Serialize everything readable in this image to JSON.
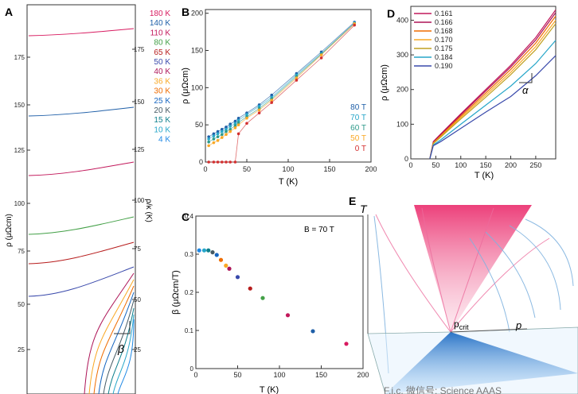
{
  "panels": {
    "A": {
      "label": "A",
      "ylabel": "ρ (μΩcm)",
      "ylabel_right": "ρ/κ (K)",
      "left_ticks": [
        "25",
        "50",
        "75",
        "100",
        "125",
        "150",
        "175"
      ],
      "right_ticks": [
        "25",
        "50",
        "75",
        "100",
        "125",
        "150",
        "175"
      ],
      "beta_label": "β",
      "legend": [
        {
          "text": "180 K",
          "color": "#d81b60"
        },
        {
          "text": "140 K",
          "color": "#1f5fa8"
        },
        {
          "text": "110 K",
          "color": "#c2185b"
        },
        {
          "text": "80 K",
          "color": "#43a047"
        },
        {
          "text": "65 K",
          "color": "#b71c1c"
        },
        {
          "text": "50 K",
          "color": "#3949ab"
        },
        {
          "text": "40 K",
          "color": "#ad1457"
        },
        {
          "text": "36 K",
          "color": "#f9a825"
        },
        {
          "text": "30 K",
          "color": "#ef6c00"
        },
        {
          "text": "25 K",
          "color": "#1565c0"
        },
        {
          "text": "20 K",
          "color": "#455a64"
        },
        {
          "text": "15 K",
          "color": "#0d7f8c"
        },
        {
          "text": "10 K",
          "color": "#26a6c9"
        },
        {
          "text": "4 K",
          "color": "#1e88e5"
        }
      ]
    },
    "B": {
      "label": "B",
      "xlabel": "T (K)",
      "ylabel": "ρ (μΩcm)",
      "legend": [
        {
          "text": "80 T",
          "color": "#1f5fa8"
        },
        {
          "text": "70 T",
          "color": "#26a6c9"
        },
        {
          "text": "60 T",
          "color": "#2e9a8a"
        },
        {
          "text": "50 T",
          "color": "#f9a825"
        },
        {
          "text": "0 T",
          "color": "#d32f2f"
        }
      ]
    },
    "C": {
      "label": "C",
      "xlabel": "T (K)",
      "ylabel": "β (μΩcm/T)",
      "annotation": "B = 70 T"
    },
    "D": {
      "label": "D",
      "xlabel": "T (K)",
      "ylabel": "ρ (μΩcm)",
      "alpha_label": "α",
      "legend": [
        {
          "text": "0.161",
          "color": "#c2185b"
        },
        {
          "text": "0.166",
          "color": "#ad1457"
        },
        {
          "text": "0.168",
          "color": "#ef6c00"
        },
        {
          "text": "0.170",
          "color": "#f9a825"
        },
        {
          "text": "0.175",
          "color": "#c0a020"
        },
        {
          "text": "0.184",
          "color": "#26a6c9"
        },
        {
          "text": "0.190",
          "color": "#3949ab"
        }
      ]
    },
    "E": {
      "label": "E",
      "axis_T": "T",
      "axis_p": "p",
      "pcrit": "p",
      "pcrit_sub": "crit"
    }
  },
  "watermark": "F.i.c. 微信号: Science AAAS",
  "chart_data": [
    {
      "type": "bar",
      "panel": "B",
      "x_ticks": [
        0,
        50,
        100,
        150,
        200
      ],
      "y_ticks": [
        0,
        50,
        100,
        150,
        200
      ],
      "xlim": [
        0,
        200
      ],
      "ylim": [
        0,
        205
      ],
      "series": [
        {
          "name": "80 T",
          "x": [
            4,
            10,
            15,
            20,
            25,
            30,
            36,
            40,
            50,
            65,
            80,
            110,
            140,
            180
          ],
          "y": [
            34,
            38,
            41,
            44,
            47,
            51,
            55,
            59,
            66,
            77,
            90,
            119,
            148,
            188
          ]
        },
        {
          "name": "70 T",
          "x": [
            4,
            10,
            15,
            20,
            25,
            30,
            36,
            40,
            50,
            65,
            80,
            110,
            140,
            180
          ],
          "y": [
            31,
            35,
            38,
            41,
            44,
            48,
            52,
            56,
            64,
            75,
            87,
            117,
            146,
            187
          ]
        },
        {
          "name": "60 T",
          "x": [
            4,
            10,
            15,
            20,
            25,
            30,
            36,
            40,
            50,
            65,
            80,
            110,
            140,
            180
          ],
          "y": [
            27,
            31,
            34,
            37,
            41,
            44,
            49,
            53,
            61,
            72,
            85,
            115,
            145,
            186
          ]
        },
        {
          "name": "50 T",
          "x": [
            4,
            10,
            15,
            20,
            25,
            30,
            36,
            40,
            50,
            65,
            80,
            110,
            140,
            180
          ],
          "y": [
            22,
            26,
            29,
            33,
            37,
            41,
            46,
            50,
            59,
            70,
            83,
            113,
            144,
            186
          ]
        },
        {
          "name": "0 T",
          "x": [
            4,
            10,
            15,
            20,
            25,
            30,
            36,
            40,
            50,
            65,
            80,
            110,
            140,
            180
          ],
          "y": [
            0,
            0,
            0,
            0,
            0,
            0,
            0,
            38,
            52,
            66,
            80,
            110,
            140,
            184
          ]
        }
      ]
    },
    {
      "type": "scatter",
      "panel": "C",
      "x_ticks": [
        0,
        50,
        100,
        150,
        200
      ],
      "y_ticks": [
        0,
        0.1,
        0.2,
        0.3,
        0.4
      ],
      "xlim": [
        0,
        200
      ],
      "ylim": [
        0,
        0.4
      ],
      "points": [
        {
          "x": 4,
          "y": 0.31,
          "color": "#1e88e5"
        },
        {
          "x": 10,
          "y": 0.31,
          "color": "#26a6c9"
        },
        {
          "x": 15,
          "y": 0.31,
          "color": "#0d7f8c"
        },
        {
          "x": 20,
          "y": 0.305,
          "color": "#455a64"
        },
        {
          "x": 25,
          "y": 0.298,
          "color": "#1565c0"
        },
        {
          "x": 30,
          "y": 0.285,
          "color": "#ef6c00"
        },
        {
          "x": 36,
          "y": 0.27,
          "color": "#f9a825"
        },
        {
          "x": 40,
          "y": 0.262,
          "color": "#ad1457"
        },
        {
          "x": 50,
          "y": 0.24,
          "color": "#3949ab"
        },
        {
          "x": 65,
          "y": 0.21,
          "color": "#b71c1c"
        },
        {
          "x": 80,
          "y": 0.185,
          "color": "#43a047"
        },
        {
          "x": 110,
          "y": 0.14,
          "color": "#c2185b"
        },
        {
          "x": 140,
          "y": 0.098,
          "color": "#1f5fa8"
        },
        {
          "x": 180,
          "y": 0.065,
          "color": "#d81b60"
        }
      ]
    },
    {
      "type": "line",
      "panel": "D",
      "x_ticks": [
        0,
        50,
        100,
        150,
        200,
        250
      ],
      "y_ticks": [
        0,
        100,
        200,
        300,
        400
      ],
      "xlim": [
        0,
        290
      ],
      "ylim": [
        0,
        440
      ],
      "series": [
        {
          "name": "0.161",
          "x": [
            38,
            45,
            60,
            100,
            150,
            200,
            250,
            290
          ],
          "y": [
            0,
            50,
            72,
            130,
            200,
            270,
            350,
            430
          ]
        },
        {
          "name": "0.166",
          "x": [
            38,
            45,
            60,
            100,
            150,
            200,
            250,
            290
          ],
          "y": [
            0,
            48,
            70,
            127,
            196,
            265,
            343,
            422
          ]
        },
        {
          "name": "0.168",
          "x": [
            38,
            45,
            60,
            100,
            150,
            200,
            250,
            290
          ],
          "y": [
            0,
            46,
            67,
            123,
            190,
            258,
            334,
            412
          ]
        },
        {
          "name": "0.170",
          "x": [
            38,
            45,
            60,
            100,
            150,
            200,
            250,
            290
          ],
          "y": [
            0,
            45,
            65,
            119,
            184,
            250,
            324,
            400
          ]
        },
        {
          "name": "0.175",
          "x": [
            38,
            45,
            60,
            100,
            150,
            200,
            250,
            290
          ],
          "y": [
            0,
            44,
            63,
            115,
            178,
            243,
            315,
            390
          ]
        },
        {
          "name": "0.184",
          "x": [
            38,
            45,
            60,
            100,
            150,
            200,
            250,
            290
          ],
          "y": [
            0,
            40,
            55,
            100,
            155,
            210,
            275,
            342
          ]
        },
        {
          "name": "0.190",
          "x": [
            38,
            45,
            60,
            100,
            150,
            200,
            250,
            290
          ],
          "y": [
            0,
            38,
            50,
            88,
            135,
            180,
            240,
            298
          ]
        }
      ]
    }
  ]
}
